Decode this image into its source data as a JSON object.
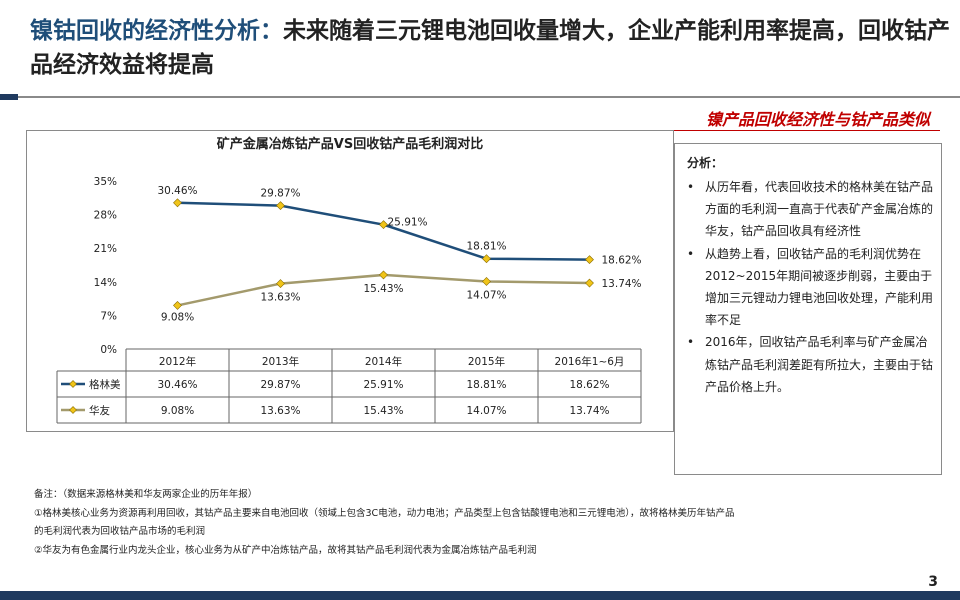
{
  "header": {
    "title_highlight": "镍钴回收的经济性分析：",
    "title_rest": "未来随着三元锂电池回收量增大，企业产能利用率提高，回收钴产品经济效益将提高",
    "section_label": "镍产品回收经济性与钴产品类似"
  },
  "chart_data": {
    "type": "line",
    "title": "矿产金属冶炼钴产品VS回收钴产品毛利润对比",
    "categories": [
      "2012年",
      "2013年",
      "2014年",
      "2015年",
      "2016年1~6月"
    ],
    "y_ticks": [
      "35%",
      "28%",
      "21%",
      "14%",
      "7%",
      "0%"
    ],
    "ylim": [
      0,
      35
    ],
    "series": [
      {
        "name": "格林美",
        "color": "#1f4e79",
        "values": [
          30.46,
          29.87,
          25.91,
          18.81,
          18.62
        ],
        "labels": [
          "30.46%",
          "29.87%",
          "25.91%",
          "18.81%",
          "18.62%"
        ]
      },
      {
        "name": "华友",
        "color": "#a39a6c",
        "values": [
          9.08,
          13.63,
          15.43,
          14.07,
          13.74
        ],
        "labels": [
          "9.08%",
          "13.63%",
          "15.43%",
          "14.07%",
          "13.74%"
        ]
      }
    ],
    "marker_color": "#f0c419",
    "legend": "data-table"
  },
  "analysis": {
    "heading": "分析：",
    "points": [
      "从历年看，代表回收技术的格林美在钴产品方面的毛利润一直高于代表矿产金属冶炼的华友，钴产品回收具有经济性",
      "从趋势上看，回收钴产品的毛利润优势在2012~2015年期间被逐步削弱，主要由于增加三元锂动力锂电池回收处理，产能利用率不足",
      "2016年，回收钴产品毛利率与矿产金属冶炼钴产品毛利润差距有所拉大，主要由于钴产品价格上升。"
    ]
  },
  "notes": {
    "line1": "备注：（数据来源格林美和华友两家企业的历年年报）",
    "line2": "①格林美核心业务为资源再利用回收，其钴产品主要来自电池回收（领域上包含3C电池，动力电池；产品类型上包含钴酸锂电池和三元锂电池），故将格林美历年钴产品",
    "line3": "的毛利润代表为回收钴产品市场的毛利润",
    "line4": "②华友为有色金属行业内龙头企业，核心业务为从矿产中冶炼钴产品，故将其钴产品毛利润代表为金属冶炼钴产品毛利润"
  },
  "page_number": "3"
}
